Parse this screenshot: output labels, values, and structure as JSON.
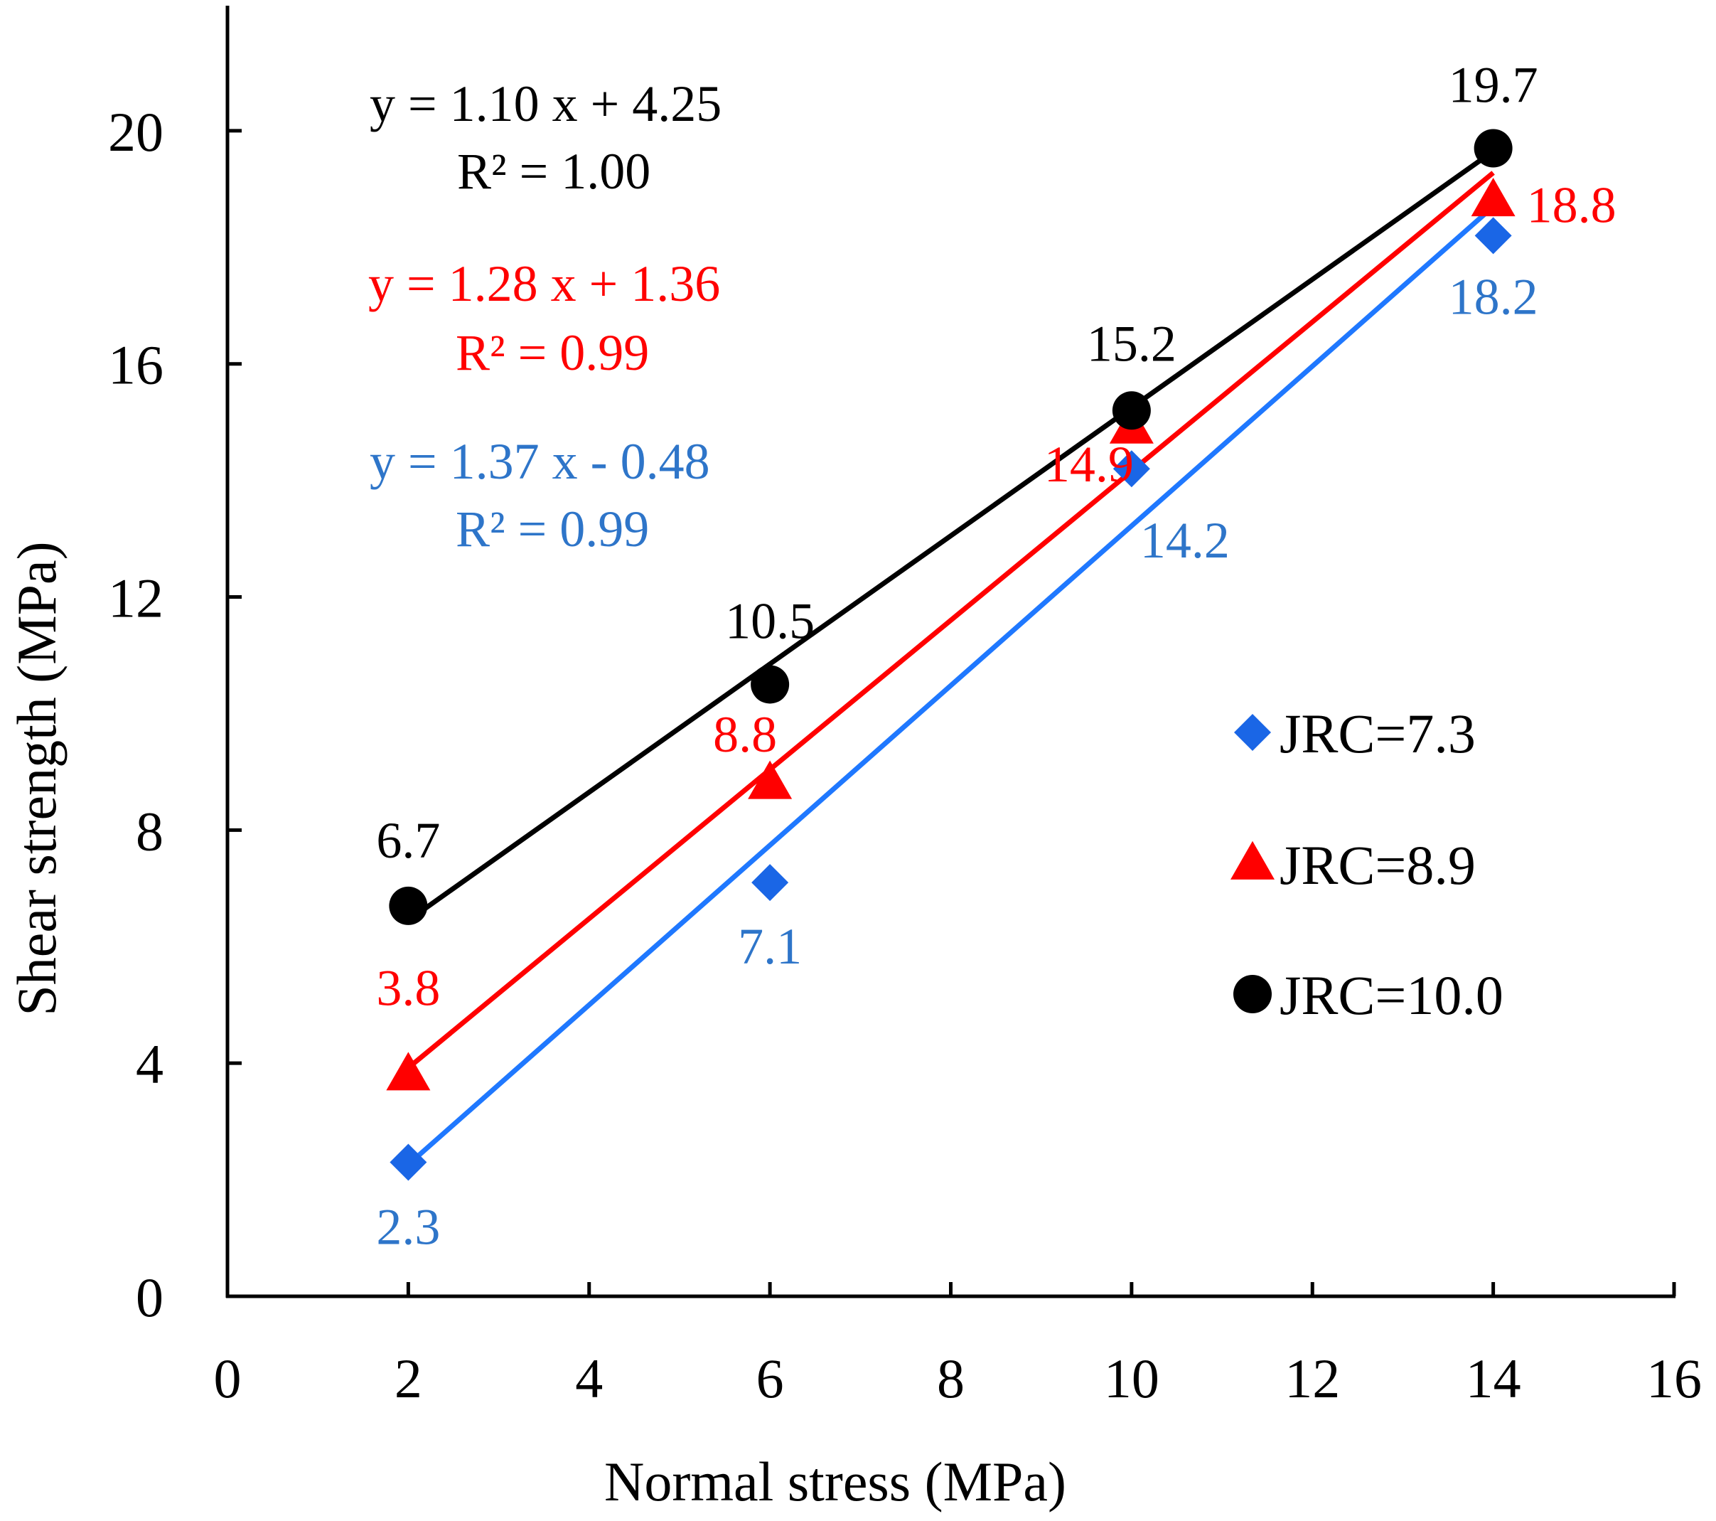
{
  "chart_data": {
    "type": "scatter",
    "title": "",
    "xlabel": "Normal stress (MPa)",
    "ylabel": "Shear strength (MPa)",
    "xlim": [
      0,
      16
    ],
    "ylim": [
      0,
      22
    ],
    "xticks": [
      0,
      2,
      4,
      6,
      8,
      10,
      12,
      14,
      16
    ],
    "yticks": [
      0,
      4,
      8,
      12,
      16,
      20
    ],
    "xtick_labels": [
      "0",
      "2",
      "4",
      "6",
      "8",
      "10",
      "12",
      "14",
      "16"
    ],
    "ytick_labels": [
      "0",
      "4",
      "8",
      "12",
      "16",
      "20"
    ],
    "grid": false,
    "legend_position": "right",
    "x": [
      2,
      6,
      10,
      14
    ],
    "series": [
      {
        "name": "JRC=7.3",
        "marker": "diamond",
        "marker_color": "#1a66e6",
        "line_color": "#1f78ff",
        "label_color": "#2e75c9",
        "values": [
          2.3,
          7.1,
          14.2,
          18.2
        ],
        "point_labels": [
          "2.3",
          "7.1",
          "14.2",
          "18.2"
        ],
        "fit": {
          "slope": 1.37,
          "intercept": -0.48
        },
        "equation": "y = 1.37 x - 0.48",
        "r2": "R² = 0.99"
      },
      {
        "name": "JRC=8.9",
        "marker": "triangle",
        "marker_color": "#ff0000",
        "line_color": "#ff0000",
        "label_color": "#ff0000",
        "values": [
          3.8,
          8.8,
          14.9,
          18.8
        ],
        "point_labels": [
          "3.8",
          "8.8",
          "14.9",
          "18.8"
        ],
        "fit": {
          "slope": 1.28,
          "intercept": 1.36
        },
        "equation": "y = 1.28 x + 1.36",
        "r2": "R² = 0.99"
      },
      {
        "name": "JRC=10.0",
        "marker": "circle",
        "marker_color": "#000000",
        "line_color": "#000000",
        "label_color": "#000000",
        "values": [
          6.7,
          10.5,
          15.2,
          19.7
        ],
        "point_labels": [
          "6.7",
          "10.5",
          "15.2",
          "19.7"
        ],
        "fit": {
          "slope": 1.1,
          "intercept": 4.25
        },
        "equation": "y = 1.10 x + 4.25",
        "r2": "R² = 1.00"
      }
    ]
  }
}
